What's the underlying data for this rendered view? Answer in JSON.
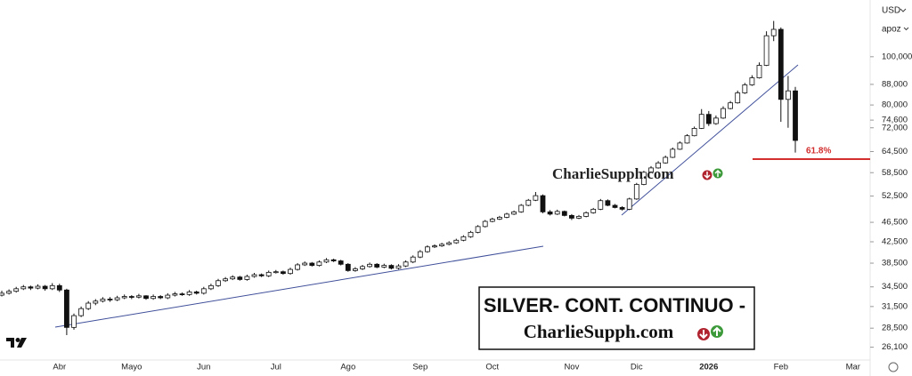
{
  "chart_data": {
    "type": "candlestick",
    "currency": "USD",
    "mode": "apoz",
    "log_scale": true,
    "up_color": "#ffffff",
    "down_color": "#111111",
    "ylim": [
      24600,
      130000
    ],
    "yticks": [
      {
        "value": 26100,
        "label": "26,100"
      },
      {
        "value": 28500,
        "label": "28,500"
      },
      {
        "value": 31500,
        "label": "31,500"
      },
      {
        "value": 34500,
        "label": "34,500"
      },
      {
        "value": 38500,
        "label": "38,500"
      },
      {
        "value": 42500,
        "label": "42,500"
      },
      {
        "value": 46500,
        "label": "46,500"
      },
      {
        "value": 52500,
        "label": "52,500"
      },
      {
        "value": 58500,
        "label": "58,500"
      },
      {
        "value": 64500,
        "label": "64,500"
      },
      {
        "value": 72000,
        "label": "72,000"
      },
      {
        "value": 74600,
        "label": "74,600"
      },
      {
        "value": 80000,
        "label": "80,000"
      },
      {
        "value": 88000,
        "label": "88,000"
      },
      {
        "value": 100000,
        "label": "100,000"
      }
    ],
    "annotations": {
      "fib_label": "61.8%",
      "watermark": "CharlieSupph.com",
      "box_title": "SILVER- CONT. CONTINUO -",
      "box_site": "CharlieSupph.com"
    },
    "categories": [
      null,
      null,
      null,
      null,
      null,
      null,
      null,
      null,
      "Abr",
      null,
      null,
      null,
      null,
      null,
      null,
      null,
      null,
      null,
      "Mayo",
      null,
      null,
      null,
      null,
      null,
      null,
      null,
      null,
      null,
      "Jun",
      null,
      null,
      null,
      null,
      null,
      null,
      null,
      null,
      null,
      "Jul",
      null,
      null,
      null,
      null,
      null,
      null,
      null,
      null,
      null,
      "Ago",
      null,
      null,
      null,
      null,
      null,
      null,
      null,
      null,
      null,
      "Sep",
      null,
      null,
      null,
      null,
      null,
      null,
      null,
      null,
      null,
      "Oct",
      null,
      null,
      null,
      null,
      null,
      null,
      null,
      null,
      null,
      null,
      "Nov",
      null,
      null,
      null,
      null,
      null,
      null,
      null,
      null,
      "Dic",
      null,
      null,
      null,
      null,
      null,
      null,
      null,
      null,
      null,
      "2026",
      null,
      null,
      null,
      null,
      null,
      null,
      null,
      null,
      null,
      "Feb",
      null,
      null,
      null,
      null,
      null,
      null,
      null,
      null,
      null,
      "Mar"
    ],
    "ohlc": [
      [
        33200,
        33900,
        33000,
        33500
      ],
      [
        33500,
        34100,
        33300,
        33800
      ],
      [
        33800,
        34500,
        33600,
        34200
      ],
      [
        34200,
        34800,
        34000,
        34500
      ],
      [
        34500,
        34700,
        34000,
        34300
      ],
      [
        34300,
        34900,
        34100,
        34600
      ],
      [
        34600,
        34800,
        33900,
        34200
      ],
      [
        34200,
        35100,
        34000,
        34700
      ],
      [
        34700,
        35000,
        33700,
        34000
      ],
      [
        34000,
        34200,
        27600,
        28600
      ],
      [
        28600,
        30500,
        28300,
        30200
      ],
      [
        30200,
        31500,
        30000,
        31200
      ],
      [
        31200,
        32300,
        31000,
        32000
      ],
      [
        32000,
        32600,
        31700,
        32300
      ],
      [
        32300,
        32900,
        32100,
        32600
      ],
      [
        32600,
        32900,
        32200,
        32500
      ],
      [
        32500,
        33100,
        32300,
        32800
      ],
      [
        32800,
        33300,
        32600,
        33000
      ],
      [
        33000,
        33200,
        32600,
        32900
      ],
      [
        32900,
        33400,
        32700,
        33100
      ],
      [
        33100,
        33200,
        32500,
        32700
      ],
      [
        32700,
        33300,
        32500,
        33000
      ],
      [
        33000,
        33200,
        32600,
        32800
      ],
      [
        32800,
        33500,
        32600,
        33200
      ],
      [
        33200,
        33700,
        33000,
        33400
      ],
      [
        33400,
        33600,
        33100,
        33300
      ],
      [
        33300,
        34000,
        33100,
        33700
      ],
      [
        33700,
        33900,
        33300,
        33500
      ],
      [
        33500,
        34500,
        33300,
        34200
      ],
      [
        34200,
        35000,
        34000,
        34700
      ],
      [
        34700,
        35800,
        34500,
        35500
      ],
      [
        35500,
        36100,
        35300,
        35800
      ],
      [
        35800,
        36400,
        35600,
        36100
      ],
      [
        36100,
        36300,
        35500,
        35700
      ],
      [
        35700,
        36500,
        35500,
        36200
      ],
      [
        36200,
        36800,
        36000,
        36500
      ],
      [
        36500,
        36700,
        36100,
        36300
      ],
      [
        36300,
        37200,
        36100,
        36900
      ],
      [
        36900,
        37300,
        36700,
        37000
      ],
      [
        37000,
        37200,
        36500,
        36700
      ],
      [
        36700,
        37700,
        36500,
        37400
      ],
      [
        37400,
        38500,
        37200,
        38200
      ],
      [
        38200,
        38800,
        38000,
        38500
      ],
      [
        38500,
        38700,
        37900,
        38100
      ],
      [
        38100,
        39000,
        37900,
        38700
      ],
      [
        38700,
        39400,
        38500,
        39100
      ],
      [
        39100,
        39300,
        38700,
        38900
      ],
      [
        38900,
        39100,
        38100,
        38300
      ],
      [
        38300,
        38500,
        37000,
        37200
      ],
      [
        37200,
        37800,
        37000,
        37500
      ],
      [
        37500,
        38200,
        37300,
        37900
      ],
      [
        37900,
        38600,
        37700,
        38300
      ],
      [
        38300,
        38500,
        37600,
        37800
      ],
      [
        37800,
        38400,
        37600,
        38100
      ],
      [
        38100,
        38300,
        37400,
        37600
      ],
      [
        37600,
        38300,
        37400,
        38000
      ],
      [
        38000,
        39000,
        37800,
        38700
      ],
      [
        38700,
        39900,
        38500,
        39600
      ],
      [
        39600,
        40900,
        39400,
        40600
      ],
      [
        40600,
        41800,
        40400,
        41500
      ],
      [
        41500,
        42000,
        41300,
        41700
      ],
      [
        41700,
        42300,
        41500,
        42000
      ],
      [
        42000,
        42600,
        41800,
        42300
      ],
      [
        42300,
        43100,
        42100,
        42800
      ],
      [
        42800,
        43800,
        42600,
        43500
      ],
      [
        43500,
        44700,
        43300,
        44400
      ],
      [
        44400,
        45900,
        44200,
        45600
      ],
      [
        45600,
        47000,
        45400,
        46700
      ],
      [
        46700,
        47500,
        46500,
        47200
      ],
      [
        47200,
        47900,
        47000,
        47600
      ],
      [
        47600,
        48600,
        47400,
        48300
      ],
      [
        48300,
        49100,
        48100,
        48800
      ],
      [
        48800,
        50600,
        48600,
        50300
      ],
      [
        50300,
        51800,
        50100,
        51500
      ],
      [
        51500,
        53500,
        51300,
        52600
      ],
      [
        52600,
        52900,
        48500,
        48800
      ],
      [
        48800,
        49200,
        48000,
        48300
      ],
      [
        48300,
        49300,
        48100,
        48900
      ],
      [
        48900,
        49100,
        47800,
        48000
      ],
      [
        48000,
        48300,
        47000,
        47400
      ],
      [
        47400,
        48100,
        47200,
        47800
      ],
      [
        47800,
        48900,
        47600,
        48600
      ],
      [
        48600,
        49700,
        48400,
        49400
      ],
      [
        49400,
        51800,
        49200,
        51400
      ],
      [
        51400,
        51700,
        50100,
        50300
      ],
      [
        50300,
        50600,
        49600,
        49800
      ],
      [
        49800,
        50100,
        49100,
        49400
      ],
      [
        49400,
        52100,
        49200,
        51800
      ],
      [
        51800,
        55800,
        51600,
        55400
      ],
      [
        55400,
        59000,
        55200,
        58600
      ],
      [
        58600,
        60300,
        58400,
        59800
      ],
      [
        59800,
        61700,
        59600,
        61200
      ],
      [
        61200,
        63300,
        61000,
        62800
      ],
      [
        62800,
        65700,
        62600,
        65200
      ],
      [
        65200,
        67600,
        65000,
        67100
      ],
      [
        67100,
        69900,
        66900,
        69400
      ],
      [
        69400,
        72400,
        69200,
        71800
      ],
      [
        71800,
        78500,
        71600,
        76600
      ],
      [
        76600,
        77800,
        72600,
        73400
      ],
      [
        73400,
        76200,
        73000,
        75300
      ],
      [
        75300,
        79500,
        75000,
        78700
      ],
      [
        78700,
        81500,
        78400,
        80800
      ],
      [
        80800,
        85500,
        80500,
        84600
      ],
      [
        84600,
        88600,
        84200,
        87800
      ],
      [
        87800,
        91800,
        87400,
        90700
      ],
      [
        90700,
        97400,
        90400,
        96100
      ],
      [
        96100,
        112500,
        95800,
        110200
      ],
      [
        110200,
        118000,
        107500,
        113500
      ],
      [
        113500,
        114500,
        74000,
        82100
      ],
      [
        82100,
        91500,
        72000,
        85400
      ],
      [
        85400,
        87000,
        64200,
        67900
      ],
      null,
      null,
      null,
      null,
      null,
      null,
      null,
      null
    ]
  }
}
